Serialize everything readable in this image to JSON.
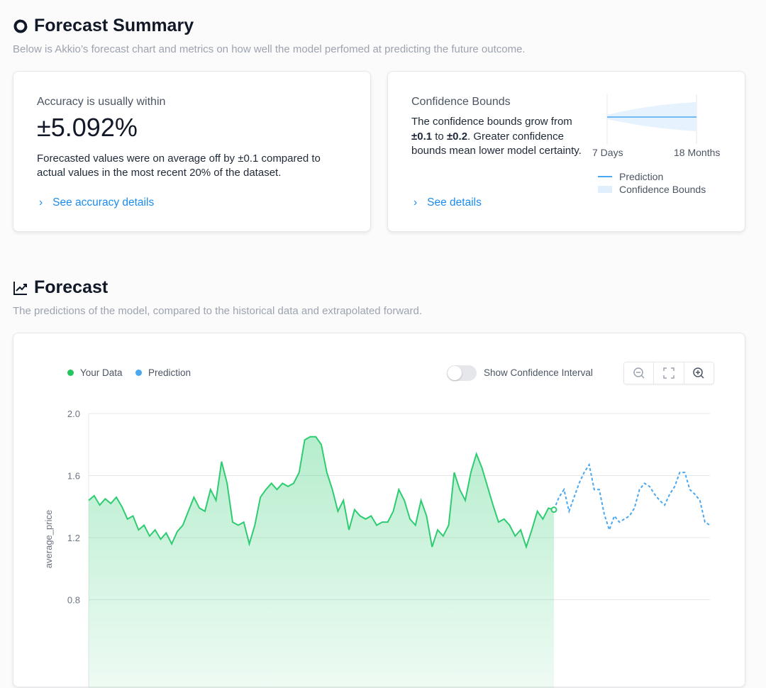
{
  "summary": {
    "title": "Forecast Summary",
    "subtitle": "Below is Akkio’s forecast chart and metrics on how well the model perfomed at predicting the future outcome."
  },
  "accuracy": {
    "label": "Accuracy is usually within",
    "value": "±5.092%",
    "description": "Forecasted values were on average off by ±0.1 compared to actual values in the most recent 20% of the dataset.",
    "link": "See accuracy details"
  },
  "confidence": {
    "title": "Confidence Bounds",
    "desc_pre": "The confidence bounds grow from ",
    "from": "±0.1",
    "mid": " to ",
    "to": "±0.2",
    "desc_post": ". Greater confidence bounds mean lower model certainty.",
    "link": "See details",
    "start_label": "7 Days",
    "end_label": "18 Months",
    "legend_prediction": "Prediction",
    "legend_bounds": "Confidence Bounds"
  },
  "forecast": {
    "title": "Forecast",
    "subtitle": "The predictions of the model, compared to the historical data and extrapolated forward.",
    "toggle_label": "Show Confidence Interval",
    "toggle_on": false
  },
  "colors": {
    "data": "#2ecc71",
    "prediction": "#4aa8f0",
    "accent": "#1a8cf0"
  },
  "chart_data": {
    "type": "area",
    "ylabel": "average_price",
    "ylim": [
      0.4,
      2.0
    ],
    "yticks": [
      "2.0",
      "1.6",
      "1.2",
      "0.8"
    ],
    "grid": true,
    "legend_position": "top-left",
    "series": [
      {
        "name": "Your Data",
        "style": "solid-area",
        "values": [
          1.44,
          1.47,
          1.41,
          1.45,
          1.42,
          1.46,
          1.4,
          1.32,
          1.34,
          1.25,
          1.28,
          1.21,
          1.25,
          1.19,
          1.23,
          1.16,
          1.24,
          1.28,
          1.37,
          1.46,
          1.39,
          1.37,
          1.51,
          1.44,
          1.69,
          1.55,
          1.3,
          1.28,
          1.3,
          1.16,
          1.28,
          1.46,
          1.51,
          1.55,
          1.51,
          1.55,
          1.53,
          1.55,
          1.62,
          1.83,
          1.85,
          1.85,
          1.8,
          1.62,
          1.51,
          1.37,
          1.44,
          1.25,
          1.38,
          1.34,
          1.32,
          1.34,
          1.28,
          1.3,
          1.3,
          1.37,
          1.51,
          1.44,
          1.32,
          1.28,
          1.44,
          1.34,
          1.14,
          1.25,
          1.21,
          1.28,
          1.62,
          1.51,
          1.44,
          1.62,
          1.74,
          1.65,
          1.53,
          1.41,
          1.3,
          1.32,
          1.28,
          1.21,
          1.25,
          1.14,
          1.25,
          1.37,
          1.32,
          1.39,
          1.38
        ]
      },
      {
        "name": "Prediction",
        "style": "dashed",
        "values": [
          1.38,
          1.46,
          1.51,
          1.37,
          1.46,
          1.55,
          1.62,
          1.67,
          1.51,
          1.51,
          1.35,
          1.25,
          1.34,
          1.3,
          1.32,
          1.34,
          1.39,
          1.51,
          1.55,
          1.53,
          1.48,
          1.44,
          1.41,
          1.48,
          1.53,
          1.62,
          1.62,
          1.51,
          1.48,
          1.44,
          1.3,
          1.28
        ]
      }
    ]
  }
}
